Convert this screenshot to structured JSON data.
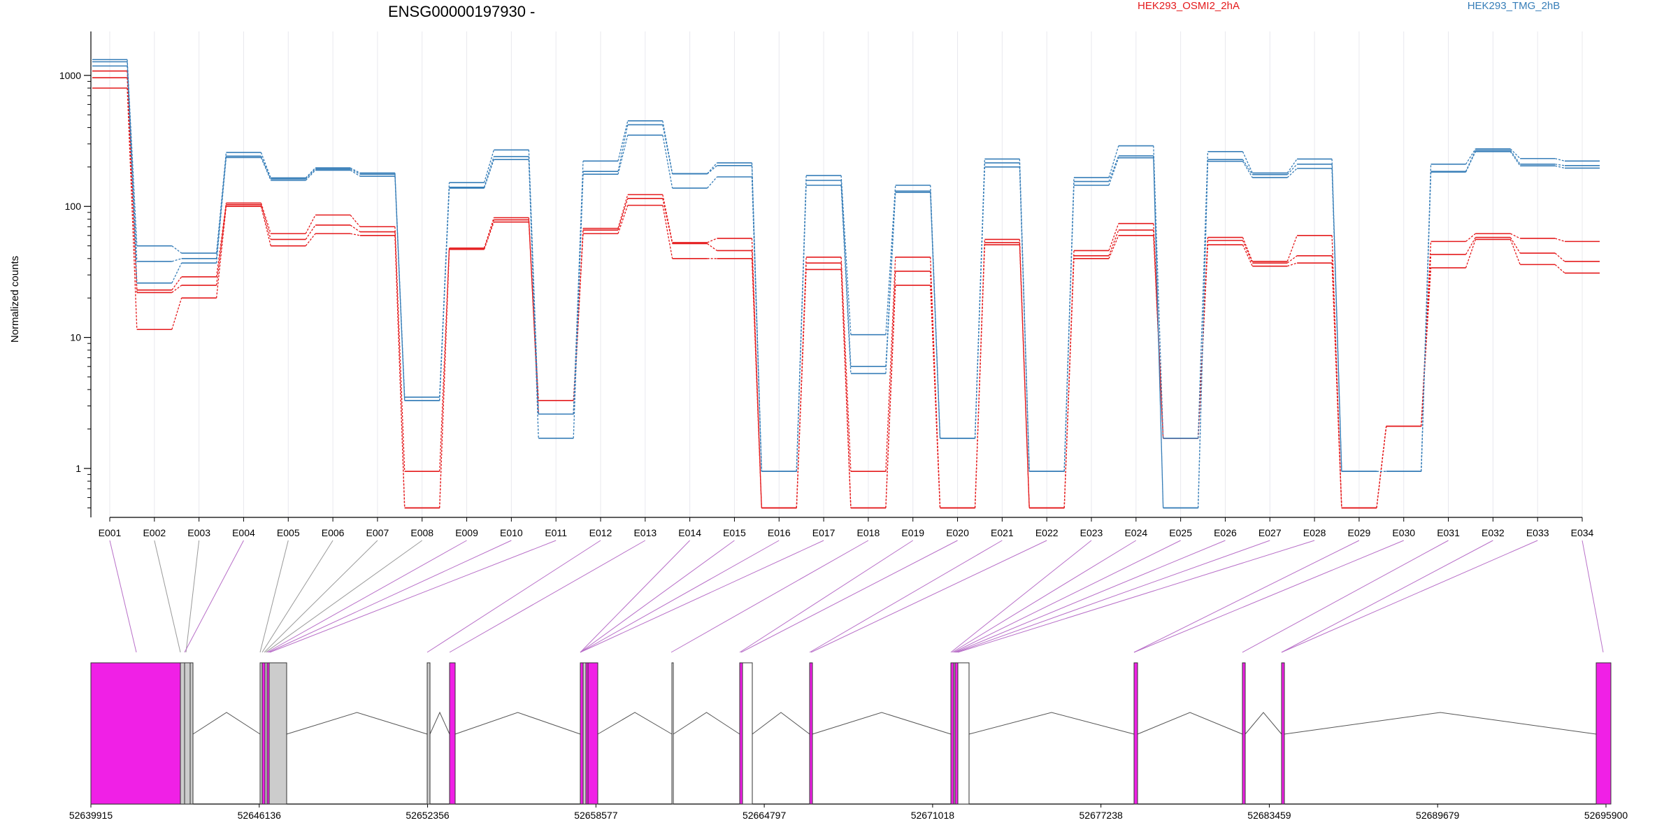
{
  "chart_data": {
    "type": "line",
    "title": "ENSG00000197930 -",
    "ylabel": "Normalized counts",
    "yscale": "log",
    "ylim": [
      0.45,
      1800
    ],
    "yticks": [
      {
        "value": 1,
        "label": "1"
      },
      {
        "value": 10,
        "label": "10"
      },
      {
        "value": 100,
        "label": "100"
      },
      {
        "value": 1000,
        "label": "1000"
      }
    ],
    "grid": "vertical",
    "legend_position": "top",
    "categories": [
      "E001",
      "E002",
      "E003",
      "E004",
      "E005",
      "E006",
      "E007",
      "E008",
      "E009",
      "E010",
      "E011",
      "E012",
      "E013",
      "E014",
      "E015",
      "E016",
      "E017",
      "E018",
      "E019",
      "E020",
      "E021",
      "E022",
      "E023",
      "E024",
      "E025",
      "E026",
      "E027",
      "E028",
      "E029",
      "E030",
      "E031",
      "E032",
      "E033",
      "E034"
    ],
    "series": [
      {
        "name": "HEK293_OSMI2_2hA",
        "group": "HEK293_OSMI2_2hA",
        "color": "#e41a1c",
        "values": [
          800,
          11.5,
          20,
          100,
          50,
          62,
          60,
          0.5,
          47,
          76,
          3.3,
          62,
          102,
          40,
          40,
          0.5,
          33,
          0.5,
          25,
          0.5,
          51,
          0.5,
          40,
          60,
          1.7,
          51,
          35,
          37,
          0.5,
          2.1,
          34,
          56,
          36,
          31
        ]
      },
      {
        "name": "HEK293_OSMI2_2hA",
        "group": "HEK293_OSMI2_2hA",
        "color": "#e41a1c",
        "values": [
          960,
          22,
          25,
          103,
          56,
          72,
          64,
          0.5,
          48,
          79,
          2.6,
          66,
          115,
          52,
          46,
          0.5,
          37,
          0.5,
          32,
          0.5,
          53,
          0.5,
          42,
          66,
          1.7,
          55,
          37,
          42,
          0.5,
          2.1,
          43,
          58,
          44,
          38
        ]
      },
      {
        "name": "HEK293_OSMI2_2hA",
        "group": "HEK293_OSMI2_2hA",
        "color": "#e41a1c",
        "values": [
          1080,
          23,
          29,
          106,
          62,
          86,
          70,
          0.95,
          48,
          82,
          2.6,
          68,
          123,
          53,
          57,
          0.5,
          41,
          0.95,
          41,
          0.5,
          56,
          0.5,
          46,
          74,
          1.7,
          58,
          38,
          60,
          0.5,
          2.1,
          54,
          62,
          57,
          54
        ]
      },
      {
        "name": "HEK293_TMG_2hB",
        "group": "HEK293_TMG_2hB",
        "color": "#377eb8",
        "values": [
          1180,
          26,
          37,
          236,
          158,
          189,
          170,
          3.3,
          138,
          228,
          1.7,
          176,
          350,
          138,
          168,
          0.95,
          145,
          5.3,
          128,
          1.7,
          200,
          0.95,
          145,
          235,
          0.5,
          221,
          166,
          195,
          0.95,
          0.95,
          183,
          262,
          204,
          196
        ]
      },
      {
        "name": "HEK293_TMG_2hB",
        "group": "HEK293_TMG_2hB",
        "color": "#377eb8",
        "values": [
          1270,
          38,
          40,
          242,
          162,
          193,
          176,
          3.3,
          140,
          240,
          2.6,
          185,
          420,
          177,
          205,
          0.95,
          158,
          6.0,
          131,
          1.7,
          215,
          0.95,
          155,
          243,
          0.5,
          228,
          175,
          210,
          0.95,
          0.95,
          185,
          268,
          210,
          205
        ]
      },
      {
        "name": "HEK293_TMG_2hB",
        "group": "HEK293_TMG_2hB",
        "color": "#377eb8",
        "values": [
          1320,
          50,
          44,
          258,
          165,
          197,
          180,
          3.5,
          152,
          270,
          2.6,
          222,
          450,
          178,
          215,
          0.95,
          172,
          10.5,
          145,
          1.7,
          230,
          0.95,
          166,
          290,
          1.7,
          262,
          180,
          230,
          0.95,
          0.95,
          210,
          275,
          232,
          222
        ]
      }
    ],
    "gene_model": {
      "coordinate_labels": [
        "52639915",
        "52646136",
        "52652356",
        "52658577",
        "52664797",
        "52671018",
        "52677238",
        "52683459",
        "52689679",
        "52695900"
      ]
    }
  }
}
